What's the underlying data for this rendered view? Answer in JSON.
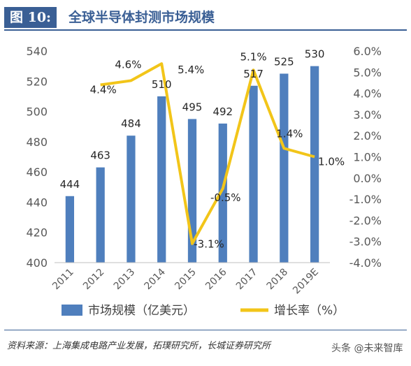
{
  "header": {
    "figure_tag": "图 10:",
    "title": "全球半导体封测市场规模"
  },
  "footer": {
    "source": "资料来源：上海集成电路产业发展，拓璞研究所，长城证券研究所",
    "watermark": "头条 @未来智库"
  },
  "colors": {
    "bar": "#4f7fbd",
    "line": "#f2c519",
    "title_blue": "#3a5f95",
    "axis_text": "#595959"
  },
  "chart_data": {
    "type": "bar",
    "categories": [
      "2011",
      "2012",
      "2013",
      "2014",
      "2015",
      "2016",
      "2017",
      "2018",
      "2019E"
    ],
    "series": [
      {
        "name": "市场规模（亿美元）",
        "type": "bar",
        "axis": "left",
        "values": [
          444,
          463,
          484,
          510,
          495,
          492,
          517,
          525,
          530
        ],
        "labels": [
          "444",
          "463",
          "484",
          "510",
          "495",
          "492",
          "517",
          "525",
          "530"
        ]
      },
      {
        "name": "增长率（%）",
        "type": "line",
        "axis": "right",
        "values": [
          null,
          4.4,
          4.6,
          5.4,
          -3.1,
          -0.5,
          5.1,
          1.4,
          1.0
        ],
        "labels": [
          "",
          "4.4%",
          "4.6%",
          "5.4%",
          "-3.1%",
          "-0.5%",
          "5.1%",
          "1.4%",
          "1.0%"
        ]
      }
    ],
    "y_left": {
      "min": 400,
      "max": 540,
      "ticks": [
        "400",
        "420",
        "440",
        "460",
        "480",
        "500",
        "520",
        "540"
      ]
    },
    "y_right": {
      "min": -4.0,
      "max": 6.0,
      "ticks": [
        "-4.0%",
        "-3.0%",
        "-2.0%",
        "-1.0%",
        "0.0%",
        "1.0%",
        "2.0%",
        "3.0%",
        "4.0%",
        "5.0%",
        "6.0%"
      ]
    },
    "grid": false,
    "legend": "bottom"
  }
}
